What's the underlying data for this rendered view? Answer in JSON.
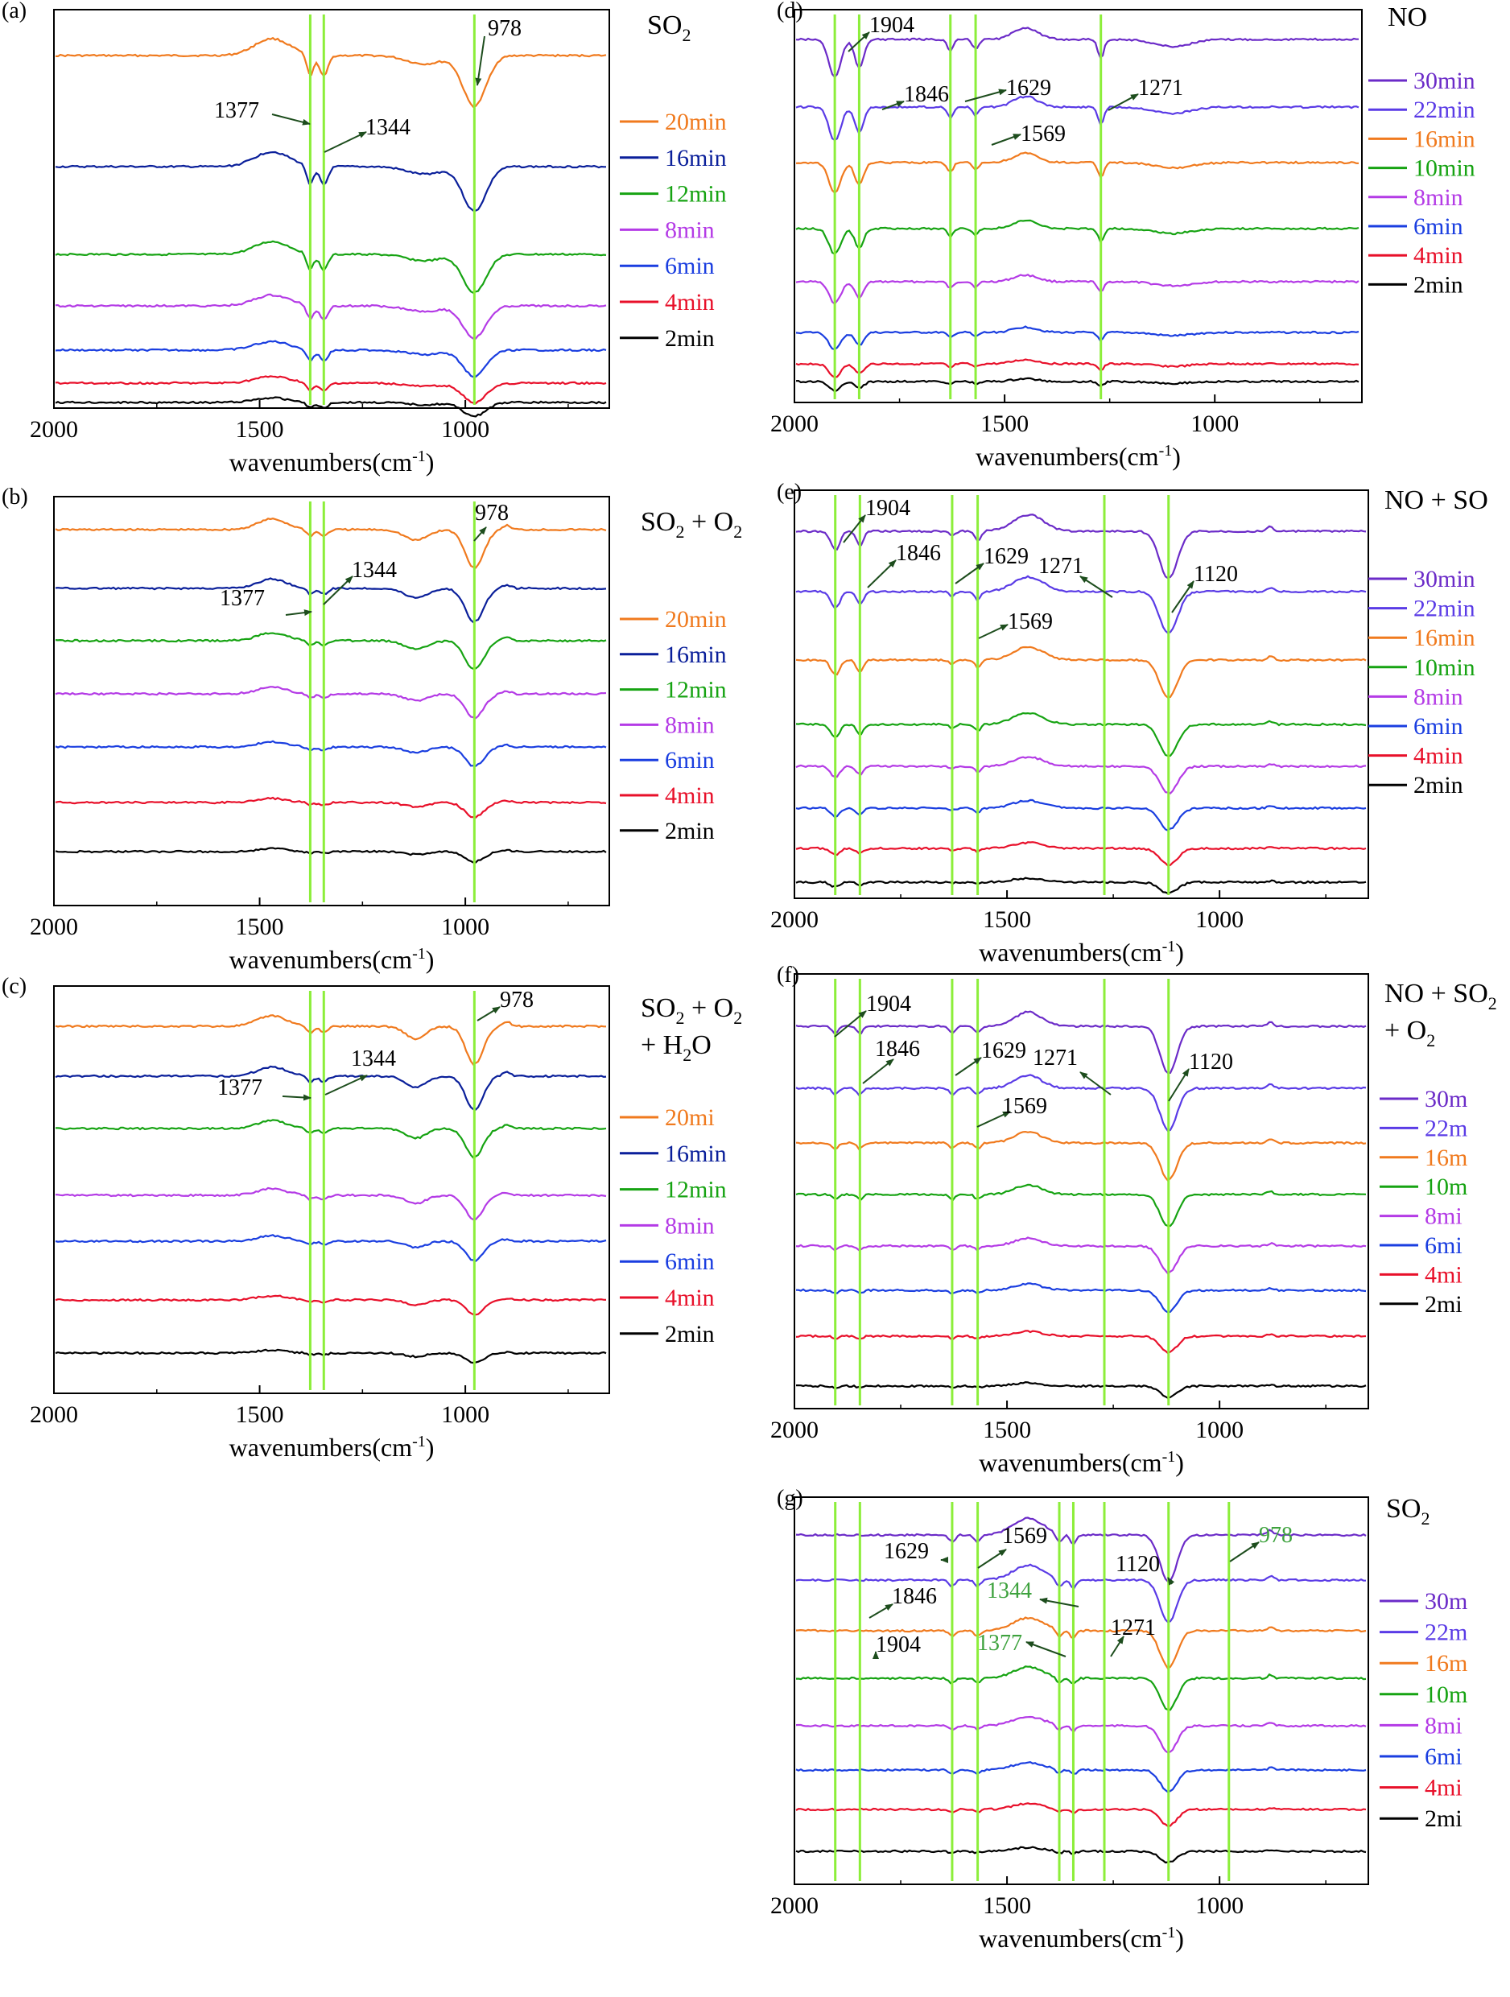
{
  "figure": {
    "common": {
      "xlabel_base": "wavenumbers(cm",
      "xlabel_exp": "-1",
      "xlabel_close": ")"
    },
    "colors": {
      "2min": "#000000",
      "4min": "#e8102a",
      "6min": "#1a3ee0",
      "8min": "#b43be6",
      "10min": "#16a312",
      "12min": "#16a312",
      "16min": "#f07a1e",
      "16min_dark": "#0a1f9a",
      "20min": "#f07a1e",
      "22min": "#5a3be6",
      "30min": "#6b2bc8",
      "marker": "#8cee3a",
      "arrow": "#1d4d1d",
      "green_text": "#3ea23e"
    }
  },
  "chart_data": [
    {
      "id": "a",
      "panel_label": "(a)",
      "type": "line",
      "title_lines": [
        {
          "base": "SO",
          "sub": "2"
        }
      ],
      "xlim": [
        2000,
        650
      ],
      "xticks": [
        2000,
        1500,
        1000
      ],
      "xreverse": true,
      "series": [
        {
          "name": "20min",
          "label_color": "#f07a1e",
          "line_color": "#f07a1e"
        },
        {
          "name": "16min",
          "label_color": "#0a1f9a",
          "line_color": "#0a1f9a"
        },
        {
          "name": "12min",
          "label_color": "#16a312",
          "line_color": "#16a312"
        },
        {
          "name": "8min",
          "label_color": "#b43be6",
          "line_color": "#b43be6"
        },
        {
          "name": "6min",
          "label_color": "#1a3ee0",
          "line_color": "#1a3ee0"
        },
        {
          "name": "4min",
          "label_color": "#e8102a",
          "line_color": "#e8102a"
        },
        {
          "name": "2min",
          "label_color": "#000000",
          "line_color": "#000000"
        }
      ],
      "marker_lines": [
        1377,
        1344,
        978
      ],
      "annotations": [
        {
          "text": "978",
          "x": 978,
          "color": "black"
        },
        {
          "text": "1377",
          "x": 1377,
          "color": "black"
        },
        {
          "text": "1344",
          "x": 1344,
          "color": "black"
        }
      ]
    },
    {
      "id": "b",
      "panel_label": "(b)",
      "type": "line",
      "title_lines": [
        {
          "base": "SO",
          "sub": "2",
          "tail": " + O",
          "sub2": "2"
        }
      ],
      "xlim": [
        2000,
        650
      ],
      "xticks": [
        2000,
        1500,
        1000
      ],
      "xreverse": true,
      "series": [
        {
          "name": "20min",
          "label_color": "#f07a1e",
          "line_color": "#f07a1e"
        },
        {
          "name": "16min",
          "label_color": "#0a1f9a",
          "line_color": "#0a1f9a"
        },
        {
          "name": "12min",
          "label_color": "#16a312",
          "line_color": "#16a312"
        },
        {
          "name": "8min",
          "label_color": "#b43be6",
          "line_color": "#b43be6"
        },
        {
          "name": "6min",
          "label_color": "#1a3ee0",
          "line_color": "#1a3ee0"
        },
        {
          "name": "4min",
          "label_color": "#e8102a",
          "line_color": "#e8102a"
        },
        {
          "name": "2min",
          "label_color": "#000000",
          "line_color": "#000000"
        }
      ],
      "marker_lines": [
        1377,
        1344,
        978
      ],
      "annotations": [
        {
          "text": "978",
          "x": 978,
          "color": "black"
        },
        {
          "text": "1377",
          "x": 1377,
          "color": "black"
        },
        {
          "text": "1344",
          "x": 1344,
          "color": "black"
        }
      ]
    },
    {
      "id": "c",
      "panel_label": "(c)",
      "type": "line",
      "title_lines": [
        {
          "base": "SO",
          "sub": "2",
          "tail": " + O",
          "sub2": "2"
        },
        {
          "base": "+ H",
          "sub": "2",
          "tail": "O"
        }
      ],
      "xlim": [
        2000,
        650
      ],
      "xticks": [
        2000,
        1500,
        1000
      ],
      "xreverse": true,
      "series": [
        {
          "name": "20mi",
          "label_color": "#f07a1e",
          "line_color": "#f07a1e"
        },
        {
          "name": "16min",
          "label_color": "#0a1f9a",
          "line_color": "#0a1f9a"
        },
        {
          "name": "12min",
          "label_color": "#16a312",
          "line_color": "#16a312"
        },
        {
          "name": "8min",
          "label_color": "#b43be6",
          "line_color": "#b43be6"
        },
        {
          "name": "6min",
          "label_color": "#1a3ee0",
          "line_color": "#1a3ee0"
        },
        {
          "name": "4min",
          "label_color": "#e8102a",
          "line_color": "#e8102a"
        },
        {
          "name": "2min",
          "label_color": "#000000",
          "line_color": "#000000"
        }
      ],
      "marker_lines": [
        1377,
        1344,
        978
      ],
      "annotations": [
        {
          "text": "978",
          "x": 978,
          "color": "black"
        },
        {
          "text": "1377",
          "x": 1377,
          "color": "black"
        },
        {
          "text": "1344",
          "x": 1344,
          "color": "black"
        }
      ]
    },
    {
      "id": "d",
      "panel_label": "(d)",
      "type": "line",
      "title_lines": [
        {
          "base": "NO"
        }
      ],
      "xlim": [
        2000,
        650
      ],
      "xticks": [
        2000,
        1500,
        1000
      ],
      "xreverse": true,
      "series": [
        {
          "name": "30min",
          "label_color": "#6b2bc8",
          "line_color": "#6b2bc8"
        },
        {
          "name": "22min",
          "label_color": "#5a3be6",
          "line_color": "#5a3be6"
        },
        {
          "name": "16min",
          "label_color": "#f07a1e",
          "line_color": "#f07a1e"
        },
        {
          "name": "10min",
          "label_color": "#16a312",
          "line_color": "#16a312"
        },
        {
          "name": "8min",
          "label_color": "#b43be6",
          "line_color": "#b43be6"
        },
        {
          "name": "6min",
          "label_color": "#1a3ee0",
          "line_color": "#1a3ee0"
        },
        {
          "name": "4min",
          "label_color": "#e8102a",
          "line_color": "#e8102a"
        },
        {
          "name": "2min",
          "label_color": "#000000",
          "line_color": "#000000"
        }
      ],
      "marker_lines": [
        1904,
        1846,
        1629,
        1569,
        1271
      ],
      "annotations": [
        {
          "text": "1904",
          "x": 1904,
          "color": "black"
        },
        {
          "text": "1846",
          "x": 1846,
          "color": "black"
        },
        {
          "text": "1629",
          "x": 1629,
          "color": "black"
        },
        {
          "text": "1569",
          "x": 1569,
          "color": "black"
        },
        {
          "text": "1271",
          "x": 1271,
          "color": "black"
        }
      ]
    },
    {
      "id": "e",
      "panel_label": "(e)",
      "type": "line",
      "title_lines": [
        {
          "base": "NO + SO"
        }
      ],
      "xlim": [
        2000,
        650
      ],
      "xticks": [
        2000,
        1500,
        1000
      ],
      "xreverse": true,
      "series": [
        {
          "name": "30min",
          "label_color": "#6b2bc8",
          "line_color": "#6b2bc8"
        },
        {
          "name": "22min",
          "label_color": "#5a3be6",
          "line_color": "#5a3be6"
        },
        {
          "name": "16min",
          "label_color": "#f07a1e",
          "line_color": "#f07a1e"
        },
        {
          "name": "10min",
          "label_color": "#16a312",
          "line_color": "#16a312"
        },
        {
          "name": "8min",
          "label_color": "#b43be6",
          "line_color": "#b43be6"
        },
        {
          "name": "6min",
          "label_color": "#1a3ee0",
          "line_color": "#1a3ee0"
        },
        {
          "name": "4min",
          "label_color": "#e8102a",
          "line_color": "#e8102a"
        },
        {
          "name": "2min",
          "label_color": "#000000",
          "line_color": "#000000"
        }
      ],
      "marker_lines": [
        1904,
        1846,
        1629,
        1569,
        1271,
        1120
      ],
      "annotations": [
        {
          "text": "1904",
          "x": 1904,
          "color": "black"
        },
        {
          "text": "1846",
          "x": 1846,
          "color": "black"
        },
        {
          "text": "1629",
          "x": 1629,
          "color": "black"
        },
        {
          "text": "1271",
          "x": 1271,
          "color": "black"
        },
        {
          "text": "1120",
          "x": 1120,
          "color": "black"
        },
        {
          "text": "1569",
          "x": 1569,
          "color": "black"
        }
      ]
    },
    {
      "id": "f",
      "panel_label": "(f)",
      "type": "line",
      "title_lines": [
        {
          "base": "NO + SO",
          "sub": "2"
        },
        {
          "base": "+ O",
          "sub": "2"
        }
      ],
      "xlim": [
        2000,
        650
      ],
      "xticks": [
        2000,
        1500,
        1000
      ],
      "xreverse": true,
      "series": [
        {
          "name": "30m",
          "label_color": "#6b2bc8",
          "line_color": "#6b2bc8"
        },
        {
          "name": "22m",
          "label_color": "#5a3be6",
          "line_color": "#5a3be6"
        },
        {
          "name": "16m",
          "label_color": "#f07a1e",
          "line_color": "#f07a1e"
        },
        {
          "name": "10m",
          "label_color": "#16a312",
          "line_color": "#16a312"
        },
        {
          "name": "8mi",
          "label_color": "#b43be6",
          "line_color": "#b43be6"
        },
        {
          "name": "6mi",
          "label_color": "#1a3ee0",
          "line_color": "#1a3ee0"
        },
        {
          "name": "4mi",
          "label_color": "#e8102a",
          "line_color": "#e8102a"
        },
        {
          "name": "2mi",
          "label_color": "#000000",
          "line_color": "#000000"
        }
      ],
      "marker_lines": [
        1904,
        1846,
        1629,
        1569,
        1271,
        1120
      ],
      "annotations": [
        {
          "text": "1904",
          "x": 1904,
          "color": "black"
        },
        {
          "text": "1846",
          "x": 1846,
          "color": "black"
        },
        {
          "text": "1629",
          "x": 1629,
          "color": "black"
        },
        {
          "text": "1271",
          "x": 1271,
          "color": "black"
        },
        {
          "text": "1120",
          "x": 1120,
          "color": "black"
        },
        {
          "text": "1569",
          "x": 1569,
          "color": "black"
        }
      ]
    },
    {
      "id": "g",
      "panel_label": "(g)",
      "type": "line",
      "title_lines": [
        {
          "base": "SO",
          "sub": "2"
        }
      ],
      "xlim": [
        2000,
        650
      ],
      "xticks": [
        2000,
        1500,
        1000
      ],
      "xreverse": true,
      "series": [
        {
          "name": "30m",
          "label_color": "#6b2bc8",
          "line_color": "#6b2bc8"
        },
        {
          "name": "22m",
          "label_color": "#5a3be6",
          "line_color": "#5a3be6"
        },
        {
          "name": "16m",
          "label_color": "#f07a1e",
          "line_color": "#f07a1e"
        },
        {
          "name": "10m",
          "label_color": "#16a312",
          "line_color": "#16a312"
        },
        {
          "name": "8mi",
          "label_color": "#b43be6",
          "line_color": "#b43be6"
        },
        {
          "name": "6mi",
          "label_color": "#1a3ee0",
          "line_color": "#1a3ee0"
        },
        {
          "name": "4mi",
          "label_color": "#e8102a",
          "line_color": "#e8102a"
        },
        {
          "name": "2mi",
          "label_color": "#000000",
          "line_color": "#000000"
        }
      ],
      "marker_lines": [
        1904,
        1846,
        1629,
        1569,
        1377,
        1344,
        1271,
        1120,
        978
      ],
      "annotations": [
        {
          "text": "1629",
          "x": 1629,
          "color": "black"
        },
        {
          "text": "1569",
          "x": 1569,
          "color": "black"
        },
        {
          "text": "978",
          "x": 978,
          "color": "green"
        },
        {
          "text": "1120",
          "x": 1120,
          "color": "black"
        },
        {
          "text": "1846",
          "x": 1846,
          "color": "black"
        },
        {
          "text": "1344",
          "x": 1344,
          "color": "green"
        },
        {
          "text": "1271",
          "x": 1271,
          "color": "black"
        },
        {
          "text": "1904",
          "x": 1904,
          "color": "black"
        },
        {
          "text": "1377",
          "x": 1377,
          "color": "green"
        }
      ]
    }
  ]
}
